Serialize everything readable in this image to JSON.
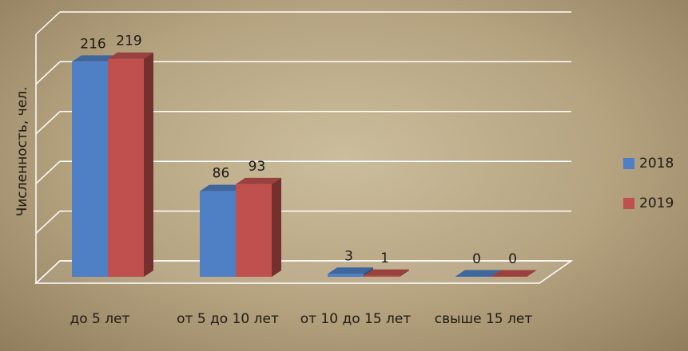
{
  "chart_data": {
    "type": "bar3d",
    "y_label": "Численность, чел.",
    "categories": [
      "до 5 лет",
      "от 5 до 10 лет",
      "от 10 до 15 лет",
      "свыше 15 лет"
    ],
    "series": [
      {
        "name": "2018",
        "color": "#4f7fc4",
        "values": [
          216,
          86,
          3,
          0
        ]
      },
      {
        "name": "2019",
        "color": "#c0504d",
        "values": [
          219,
          93,
          1,
          0
        ]
      }
    ],
    "ylim": [
      0,
      250
    ],
    "yticks": [
      0,
      50,
      100,
      150,
      200,
      250
    ],
    "grid": true,
    "legend": "right"
  }
}
